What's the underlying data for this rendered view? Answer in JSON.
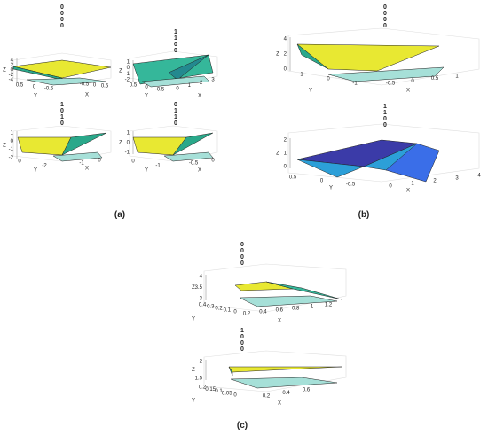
{
  "panels": [
    {
      "caption": "(a)",
      "plots": [
        {
          "title": [
            "0",
            "0",
            "0",
            "0"
          ],
          "z_label": "Z",
          "x_label": "X",
          "y_label": "Y",
          "z_ticks": [
            "4",
            "2",
            "0",
            "-2",
            "-4"
          ],
          "y_ticks": [
            "0.5",
            "0",
            "-0.5"
          ],
          "x_ticks": [
            "-0.5",
            "0",
            "0.5"
          ]
        },
        {
          "title": [
            "1",
            "1",
            "0",
            "0"
          ],
          "z_label": "Z",
          "x_label": "X",
          "y_label": "Y",
          "z_ticks": [
            "1",
            "0",
            "-1",
            "-2"
          ],
          "y_ticks": [
            "0.5",
            "0",
            "-0.5"
          ],
          "x_ticks": [
            "0",
            "1",
            "2",
            "3"
          ]
        },
        {
          "title": [
            "1",
            "0",
            "1",
            "0"
          ],
          "z_label": "Z",
          "x_label": "X",
          "y_label": "Y",
          "z_ticks": [
            "1",
            "0",
            "-1",
            "-2"
          ],
          "y_ticks": [
            "0",
            "-2"
          ],
          "x_ticks": [
            "-1",
            "0"
          ]
        },
        {
          "title": [
            "0",
            "1",
            "1",
            "0"
          ],
          "z_label": "Z",
          "x_label": "X",
          "y_label": "Y",
          "z_ticks": [
            "1",
            "0",
            "-1"
          ],
          "y_ticks": [
            "0",
            "-1"
          ],
          "x_ticks": [
            "-0.5",
            "0"
          ]
        }
      ]
    },
    {
      "caption": "(b)",
      "plots": [
        {
          "title": [
            "0",
            "0",
            "0",
            "0"
          ],
          "z_label": "Z",
          "x_label": "X",
          "y_label": "Y",
          "z_ticks": [
            "4",
            "2",
            "0"
          ],
          "y_ticks": [
            "1",
            "0",
            "-1"
          ],
          "x_ticks": [
            "-0.5",
            "0",
            "0.5",
            "1"
          ]
        },
        {
          "title": [
            "1",
            "1",
            "0",
            "0"
          ],
          "z_label": "Z",
          "x_label": "X",
          "y_label": "Y",
          "z_ticks": [
            "2",
            "1",
            "0"
          ],
          "y_ticks": [
            "0.5",
            "0",
            "-0.5"
          ],
          "x_ticks": [
            "0",
            "1",
            "2",
            "3",
            "4"
          ]
        }
      ]
    },
    {
      "caption": "(c)",
      "plots": [
        {
          "title": [
            "0",
            "0",
            "0",
            "0"
          ],
          "z_label": "Z",
          "x_label": "X",
          "y_label": "Y",
          "z_ticks": [
            "4",
            "3.5",
            "3"
          ],
          "y_ticks": [
            "0.4",
            "0.3",
            "0.2",
            "0.1",
            "0"
          ],
          "x_ticks": [
            "0.2",
            "0.4",
            "0.6",
            "0.8",
            "1",
            "1.2"
          ]
        },
        {
          "title": [
            "1",
            "0",
            "0",
            "0"
          ],
          "z_label": "Z",
          "x_label": "X",
          "y_label": "Y",
          "z_ticks": [
            "2",
            "1.5"
          ],
          "y_ticks": [
            "0.2",
            "0.15",
            "0.1",
            "0.05",
            "0"
          ],
          "x_ticks": [
            "0.2",
            "0.4",
            "0.6"
          ]
        }
      ]
    }
  ]
}
